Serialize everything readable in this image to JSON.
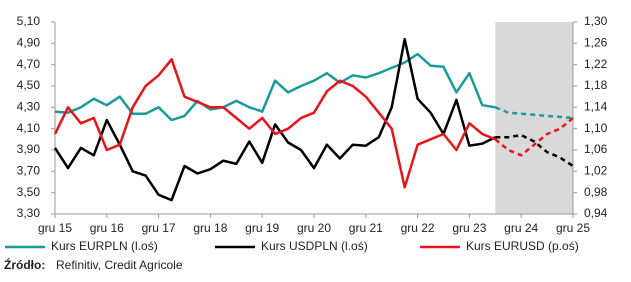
{
  "chart_data": {
    "type": "line",
    "x": [
      0,
      0.25,
      0.5,
      0.75,
      1,
      1.25,
      1.5,
      1.75,
      2,
      2.25,
      2.5,
      2.75,
      3,
      3.25,
      3.5,
      3.75,
      4,
      4.25,
      4.5,
      4.75,
      5,
      5.25,
      5.5,
      5.75,
      6,
      6.25,
      6.5,
      6.75,
      7,
      7.25,
      7.5,
      7.75,
      8,
      8.25,
      8.5,
      8.75,
      9,
      9.25,
      9.5,
      9.75,
      10
    ],
    "xlim": [
      0,
      10
    ],
    "xticks": [
      {
        "value": 0,
        "label": "gru 15"
      },
      {
        "value": 1,
        "label": "gru 16"
      },
      {
        "value": 2,
        "label": "gru 17"
      },
      {
        "value": 3,
        "label": "gru 18"
      },
      {
        "value": 4,
        "label": "gru 19"
      },
      {
        "value": 5,
        "label": "gru 20"
      },
      {
        "value": 6,
        "label": "gru 21"
      },
      {
        "value": 7,
        "label": "gru 22"
      },
      {
        "value": 8,
        "label": "gru 23"
      },
      {
        "value": 9,
        "label": "gru 24"
      },
      {
        "value": 10,
        "label": "gru 25"
      }
    ],
    "ylim": [
      3.3,
      5.1
    ],
    "yticks": [
      {
        "value": 3.3,
        "label": "3,30"
      },
      {
        "value": 3.5,
        "label": "3,50"
      },
      {
        "value": 3.7,
        "label": "3,70"
      },
      {
        "value": 3.9,
        "label": "3,90"
      },
      {
        "value": 4.1,
        "label": "4,10"
      },
      {
        "value": 4.3,
        "label": "4,30"
      },
      {
        "value": 4.5,
        "label": "4,50"
      },
      {
        "value": 4.7,
        "label": "4,70"
      },
      {
        "value": 4.9,
        "label": "4,90"
      },
      {
        "value": 5.1,
        "label": "5,10"
      }
    ],
    "y2lim": [
      0.94,
      1.3
    ],
    "y2ticks": [
      {
        "value": 0.94,
        "label": "0,94"
      },
      {
        "value": 0.98,
        "label": "0,98"
      },
      {
        "value": 1.02,
        "label": "1,02"
      },
      {
        "value": 1.06,
        "label": "1,06"
      },
      {
        "value": 1.1,
        "label": "1,10"
      },
      {
        "value": 1.14,
        "label": "1,14"
      },
      {
        "value": 1.18,
        "label": "1,18"
      },
      {
        "value": 1.22,
        "label": "1,22"
      },
      {
        "value": 1.26,
        "label": "1,26"
      },
      {
        "value": 1.3,
        "label": "1,30"
      }
    ],
    "forecast_region": [
      8.5,
      10
    ],
    "series": [
      {
        "name": "Kurs EURPLN (l.oś)",
        "color": "#1a9a9a",
        "values": [
          4.26,
          4.25,
          4.3,
          4.38,
          4.32,
          4.4,
          4.24,
          4.24,
          4.3,
          4.18,
          4.22,
          4.36,
          4.28,
          4.3,
          4.36,
          4.3,
          4.26,
          4.55,
          4.44,
          4.5,
          4.55,
          4.62,
          4.53,
          4.6,
          4.58,
          4.62,
          4.67,
          4.72,
          4.8,
          4.69,
          4.68,
          4.44,
          4.62,
          4.32,
          4.3,
          null,
          null,
          null,
          null,
          null,
          null
        ],
        "forecast": [
          null,
          null,
          null,
          null,
          null,
          null,
          null,
          null,
          null,
          null,
          null,
          null,
          null,
          null,
          null,
          null,
          null,
          null,
          null,
          null,
          null,
          null,
          null,
          null,
          null,
          null,
          null,
          null,
          null,
          null,
          null,
          null,
          null,
          null,
          4.3,
          4.25,
          4.24,
          4.23,
          4.22,
          4.21,
          4.2
        ]
      },
      {
        "name": "Kurs USDPLN (l.oś)",
        "color": "#000000",
        "values": [
          3.92,
          3.73,
          3.92,
          3.85,
          4.18,
          3.95,
          3.7,
          3.66,
          3.48,
          3.43,
          3.75,
          3.68,
          3.72,
          3.8,
          3.77,
          3.98,
          3.78,
          4.14,
          3.97,
          3.9,
          3.73,
          3.95,
          3.82,
          3.95,
          3.94,
          4.02,
          4.3,
          4.94,
          4.38,
          4.25,
          4.05,
          4.37,
          3.94,
          3.96,
          4.02,
          null,
          null,
          null,
          null,
          null,
          null
        ],
        "forecast": [
          null,
          null,
          null,
          null,
          null,
          null,
          null,
          null,
          null,
          null,
          null,
          null,
          null,
          null,
          null,
          null,
          null,
          null,
          null,
          null,
          null,
          null,
          null,
          null,
          null,
          null,
          null,
          null,
          null,
          null,
          null,
          null,
          null,
          null,
          4.02,
          4.02,
          4.04,
          3.98,
          3.88,
          3.83,
          3.75
        ]
      },
      {
        "name": "Kurs EURUSD (p.oś)",
        "color": "#e8141c",
        "axis": "y2",
        "values": [
          1.09,
          1.14,
          1.11,
          1.12,
          1.06,
          1.07,
          1.14,
          1.18,
          1.2,
          1.23,
          1.16,
          1.15,
          1.14,
          1.14,
          1.12,
          1.1,
          1.12,
          1.09,
          1.1,
          1.12,
          1.13,
          1.17,
          1.19,
          1.18,
          1.16,
          1.13,
          1.1,
          0.99,
          1.07,
          1.08,
          1.09,
          1.06,
          1.11,
          1.09,
          1.08,
          null,
          null,
          null,
          null,
          null,
          null
        ],
        "forecast": [
          null,
          null,
          null,
          null,
          null,
          null,
          null,
          null,
          null,
          null,
          null,
          null,
          null,
          null,
          null,
          null,
          null,
          null,
          null,
          null,
          null,
          null,
          null,
          null,
          null,
          null,
          null,
          null,
          null,
          null,
          null,
          null,
          null,
          null,
          1.08,
          1.06,
          1.05,
          1.07,
          1.09,
          1.1,
          1.12
        ]
      }
    ],
    "source_label": "Źródło:",
    "source": "Refinitiv, Credit Agricole"
  }
}
